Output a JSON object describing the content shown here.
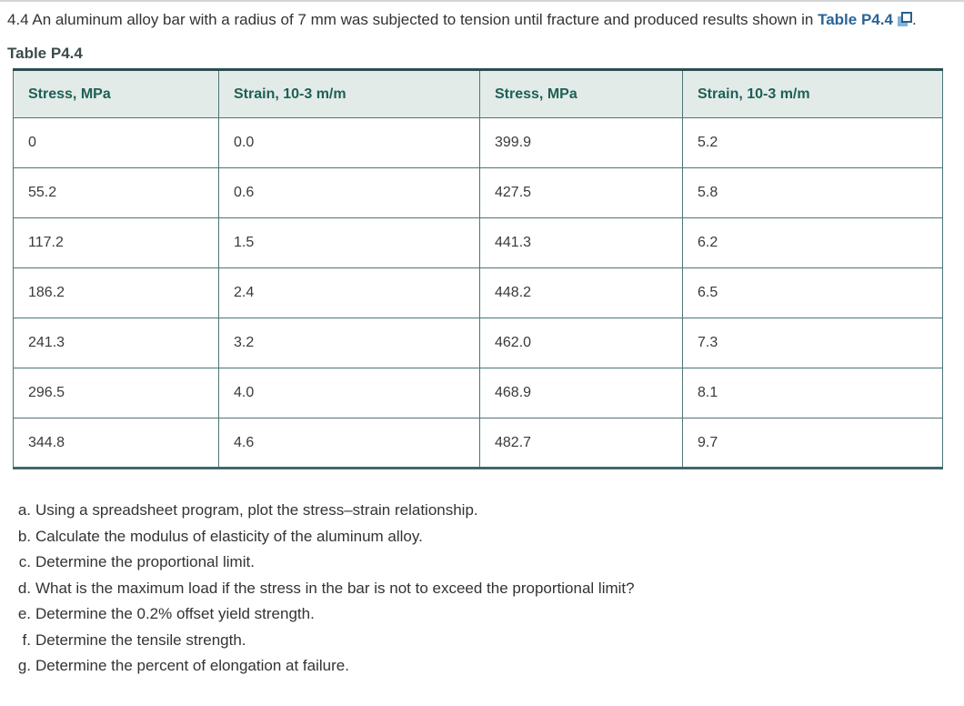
{
  "problem": {
    "text": "4.4 An aluminum alloy bar with a radius of 7 mm was subjected to tension until fracture and produced results shown in ",
    "link_text": "Table P4.4",
    "after_link": "."
  },
  "icons": {
    "table_link": "popup-window-icon"
  },
  "table": {
    "caption": "Table P4.4",
    "headers": [
      "Stress, MPa",
      "Strain, 10-3 m/m",
      "Stress, MPa",
      "Strain, 10-3 m/m"
    ],
    "rows": [
      [
        "0",
        "0.0",
        "399.9",
        "5.2"
      ],
      [
        "55.2",
        "0.6",
        "427.5",
        "5.8"
      ],
      [
        "117.2",
        "1.5",
        "441.3",
        "6.2"
      ],
      [
        "186.2",
        "2.4",
        "448.2",
        "6.5"
      ],
      [
        "241.3",
        "3.2",
        "462.0",
        "7.3"
      ],
      [
        "296.5",
        "4.0",
        "468.9",
        "8.1"
      ],
      [
        "344.8",
        "4.6",
        "482.7",
        "9.7"
      ]
    ]
  },
  "questions": [
    {
      "label": "a.",
      "text": "Using a spreadsheet program, plot the stress–strain relationship."
    },
    {
      "label": "b.",
      "text": "Calculate the modulus of elasticity of the aluminum alloy."
    },
    {
      "label": "c.",
      "text": "Determine the proportional limit."
    },
    {
      "label": "d.",
      "text": "What is the maximum load if the stress in the bar is not to exceed the proportional limit?"
    },
    {
      "label": "e.",
      "text": "Determine the 0.2% offset yield strength."
    },
    {
      "label": "f.",
      "text": "Determine the tensile strength."
    },
    {
      "label": "g.",
      "text": "Determine the percent of elongation at failure."
    }
  ],
  "colors": {
    "link_blue": "#2a6496",
    "link_icon_light_blue": "#85b2d8",
    "link_icon_dark_blue": "#29618f",
    "table_header_text": "#1e6057",
    "table_header_bg": "#e3ebe8",
    "table_border_dark": "#2b4d4f",
    "table_border_inner": "#4d7476",
    "caption_text": "#3d4a4c",
    "body_text": "#333333"
  }
}
